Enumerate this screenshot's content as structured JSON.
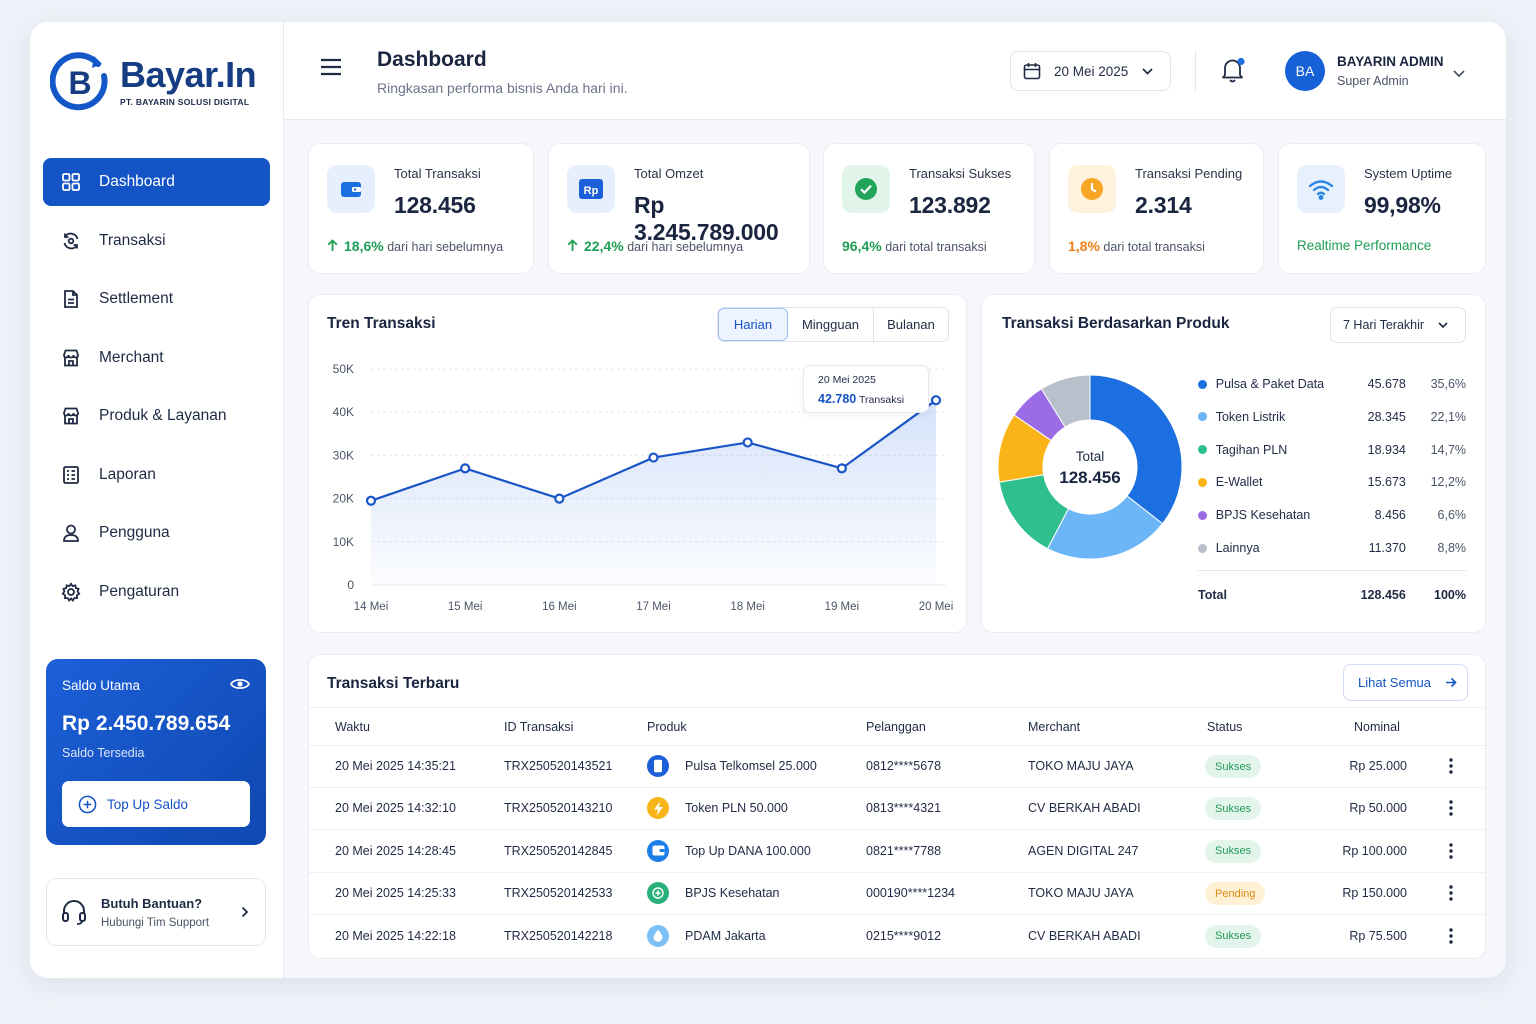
{
  "brand": {
    "name": "Bayar.In",
    "subtitle": "PT. BAYARIN SOLUSI DIGITAL",
    "mark": "B",
    "color": "#1454c6"
  },
  "sidebar": {
    "items": [
      {
        "label": "Dashboard",
        "icon": "grid-icon",
        "active": true
      },
      {
        "label": "Transaksi",
        "icon": "refresh-icon"
      },
      {
        "label": "Settlement",
        "icon": "document-icon"
      },
      {
        "label": "Merchant",
        "icon": "store-icon"
      },
      {
        "label": "Produk & Layanan",
        "icon": "store-icon"
      },
      {
        "label": "Laporan",
        "icon": "report-icon"
      },
      {
        "label": "Pengguna",
        "icon": "user-icon"
      },
      {
        "label": "Pengaturan",
        "icon": "gear-icon"
      }
    ],
    "saldo": {
      "title": "Saldo Utama",
      "amount": "Rp 2.450.789.654",
      "sub": "Saldo Tersedia",
      "topup": "Top Up Saldo"
    },
    "help": {
      "title": "Butuh Bantuan?",
      "sub": "Hubungi Tim Support"
    }
  },
  "header": {
    "title": "Dashboard",
    "subtitle": "Ringkasan performa bisnis Anda hari ini.",
    "date": "20 Mei 2025",
    "user": {
      "initials": "BA",
      "name": "BAYARIN ADMIN",
      "role": "Super Admin"
    }
  },
  "stats": [
    {
      "label": "Total Transaksi",
      "value": "128.456",
      "pct": "18,6%",
      "note": "dari hari sebelumnya",
      "icon": "wallet-icon",
      "bg": "#e6effd",
      "fg": "#1c6fe0",
      "tone": "green",
      "arrow": true
    },
    {
      "label": "Total Omzet",
      "value": "Rp 3.245.789.000",
      "pct": "22,4%",
      "note": "dari hari sebelumnya",
      "icon": "rupiah-icon",
      "bg": "#e6effd",
      "fg": "#1c5fd8",
      "tone": "green",
      "arrow": true
    },
    {
      "label": "Transaksi Sukses",
      "value": "123.892",
      "pct": "96,4%",
      "note": "dari total transaksi",
      "icon": "check-circle-icon",
      "bg": "#e2f5ea",
      "fg": "#22a55a",
      "tone": "green",
      "arrow": false
    },
    {
      "label": "Transaksi Pending",
      "value": "2.314",
      "pct": "1,8%",
      "note": "dari total transaksi",
      "icon": "clock-icon",
      "bg": "#fff2dc",
      "fg": "#f6a623",
      "tone": "orange",
      "arrow": false
    },
    {
      "label": "System Uptime",
      "value": "99,98%",
      "pct": "",
      "note": "Realtime Performance",
      "icon": "wifi-icon",
      "bg": "#e6f1fd",
      "fg": "#2b86e6",
      "tone": "green",
      "arrow": false
    }
  ],
  "trend": {
    "title": "Tren Transaksi",
    "tabs": [
      "Harian",
      "Mingguan",
      "Bulanan"
    ],
    "tooltip": {
      "date": "20 Mei 2025",
      "value": "42.780",
      "unit": "Transaksi"
    }
  },
  "product": {
    "title": "Transaksi Berdasarkan Produk",
    "range": "7 Hari Terakhir",
    "center_label": "Total",
    "center_value": "128.456",
    "rows": [
      {
        "name": "Pulsa & Paket Data",
        "value": "45.678",
        "pct": "35,6%",
        "color": "#1c6fe0"
      },
      {
        "name": "Token Listrik",
        "value": "28.345",
        "pct": "22,1%",
        "color": "#6cb5f7"
      },
      {
        "name": "Tagihan PLN",
        "value": "18.934",
        "pct": "14,7%",
        "color": "#2ebf8c"
      },
      {
        "name": "E-Wallet",
        "value": "15.673",
        "pct": "12,2%",
        "color": "#fbb417"
      },
      {
        "name": "BPJS Kesehatan",
        "value": "8.456",
        "pct": "6,6%",
        "color": "#9b6ce5"
      },
      {
        "name": "Lainnya",
        "value": "11.370",
        "pct": "8,8%",
        "color": "#b8c0cc"
      }
    ],
    "total": {
      "label": "Total",
      "value": "128.456",
      "pct": "100%"
    }
  },
  "chart_data": [
    {
      "type": "area",
      "categories": [
        "14 Mei",
        "15 Mei",
        "16 Mei",
        "17 Mei",
        "18 Mei",
        "19 Mei",
        "20 Mei"
      ],
      "values": [
        19500,
        27000,
        20000,
        29500,
        33000,
        27000,
        42780
      ],
      "yticks": [
        "0",
        "10K",
        "20K",
        "30K",
        "40K",
        "50K"
      ],
      "ylim": [
        0,
        50000
      ],
      "color": "#1a55c8"
    },
    {
      "type": "pie",
      "categories": [
        "Pulsa & Paket Data",
        "Token Listrik",
        "Tagihan PLN",
        "E-Wallet",
        "BPJS Kesehatan",
        "Lainnya"
      ],
      "values": [
        45678,
        28345,
        18934,
        15673,
        8456,
        11370
      ],
      "percent": [
        35.6,
        22.1,
        14.7,
        12.2,
        6.6,
        8.8
      ]
    }
  ],
  "recent": {
    "title": "Transaksi Terbaru",
    "see_all": "Lihat Semua",
    "columns": [
      "Waktu",
      "ID Transaksi",
      "Produk",
      "Pelanggan",
      "Merchant",
      "Status",
      "Nominal"
    ],
    "rows": [
      {
        "time": "20 Mei 2025 14:35:21",
        "id": "TRX250520143521",
        "product": "Pulsa Telkomsel 25.000",
        "customer": "0812****5678",
        "merchant": "TOKO MAJU JAYA",
        "status": "Sukses",
        "amount": "Rp 25.000",
        "icon": "phone-icon",
        "icolor": "#1c5fd8"
      },
      {
        "time": "20 Mei 2025 14:32:10",
        "id": "TRX250520143210",
        "product": "Token PLN 50.000",
        "customer": "0813****4321",
        "merchant": "CV BERKAH ABADI",
        "status": "Sukses",
        "amount": "Rp 50.000",
        "icon": "bolt-icon",
        "icolor": "#f7b51a"
      },
      {
        "time": "20 Mei 2025 14:28:45",
        "id": "TRX250520142845",
        "product": "Top Up DANA 100.000",
        "customer": "0821****7788",
        "merchant": "AGEN DIGITAL 247",
        "status": "Sukses",
        "amount": "Rp 100.000",
        "icon": "wallet-icon",
        "icolor": "#1c7ee8"
      },
      {
        "time": "20 Mei 2025 14:25:33",
        "id": "TRX250520142533",
        "product": "BPJS Kesehatan",
        "customer": "000190****1234",
        "merchant": "TOKO MAJU JAYA",
        "status": "Pending",
        "amount": "Rp 150.000",
        "icon": "health-icon",
        "icolor": "#27b07a"
      },
      {
        "time": "20 Mei 2025 14:22:18",
        "id": "TRX250520142218",
        "product": "PDAM Jakarta",
        "customer": "0215****9012",
        "merchant": "CV BERKAH ABADI",
        "status": "Sukses",
        "amount": "Rp 75.500",
        "icon": "water-drop-icon",
        "icolor": "#7cc0f5"
      }
    ]
  }
}
